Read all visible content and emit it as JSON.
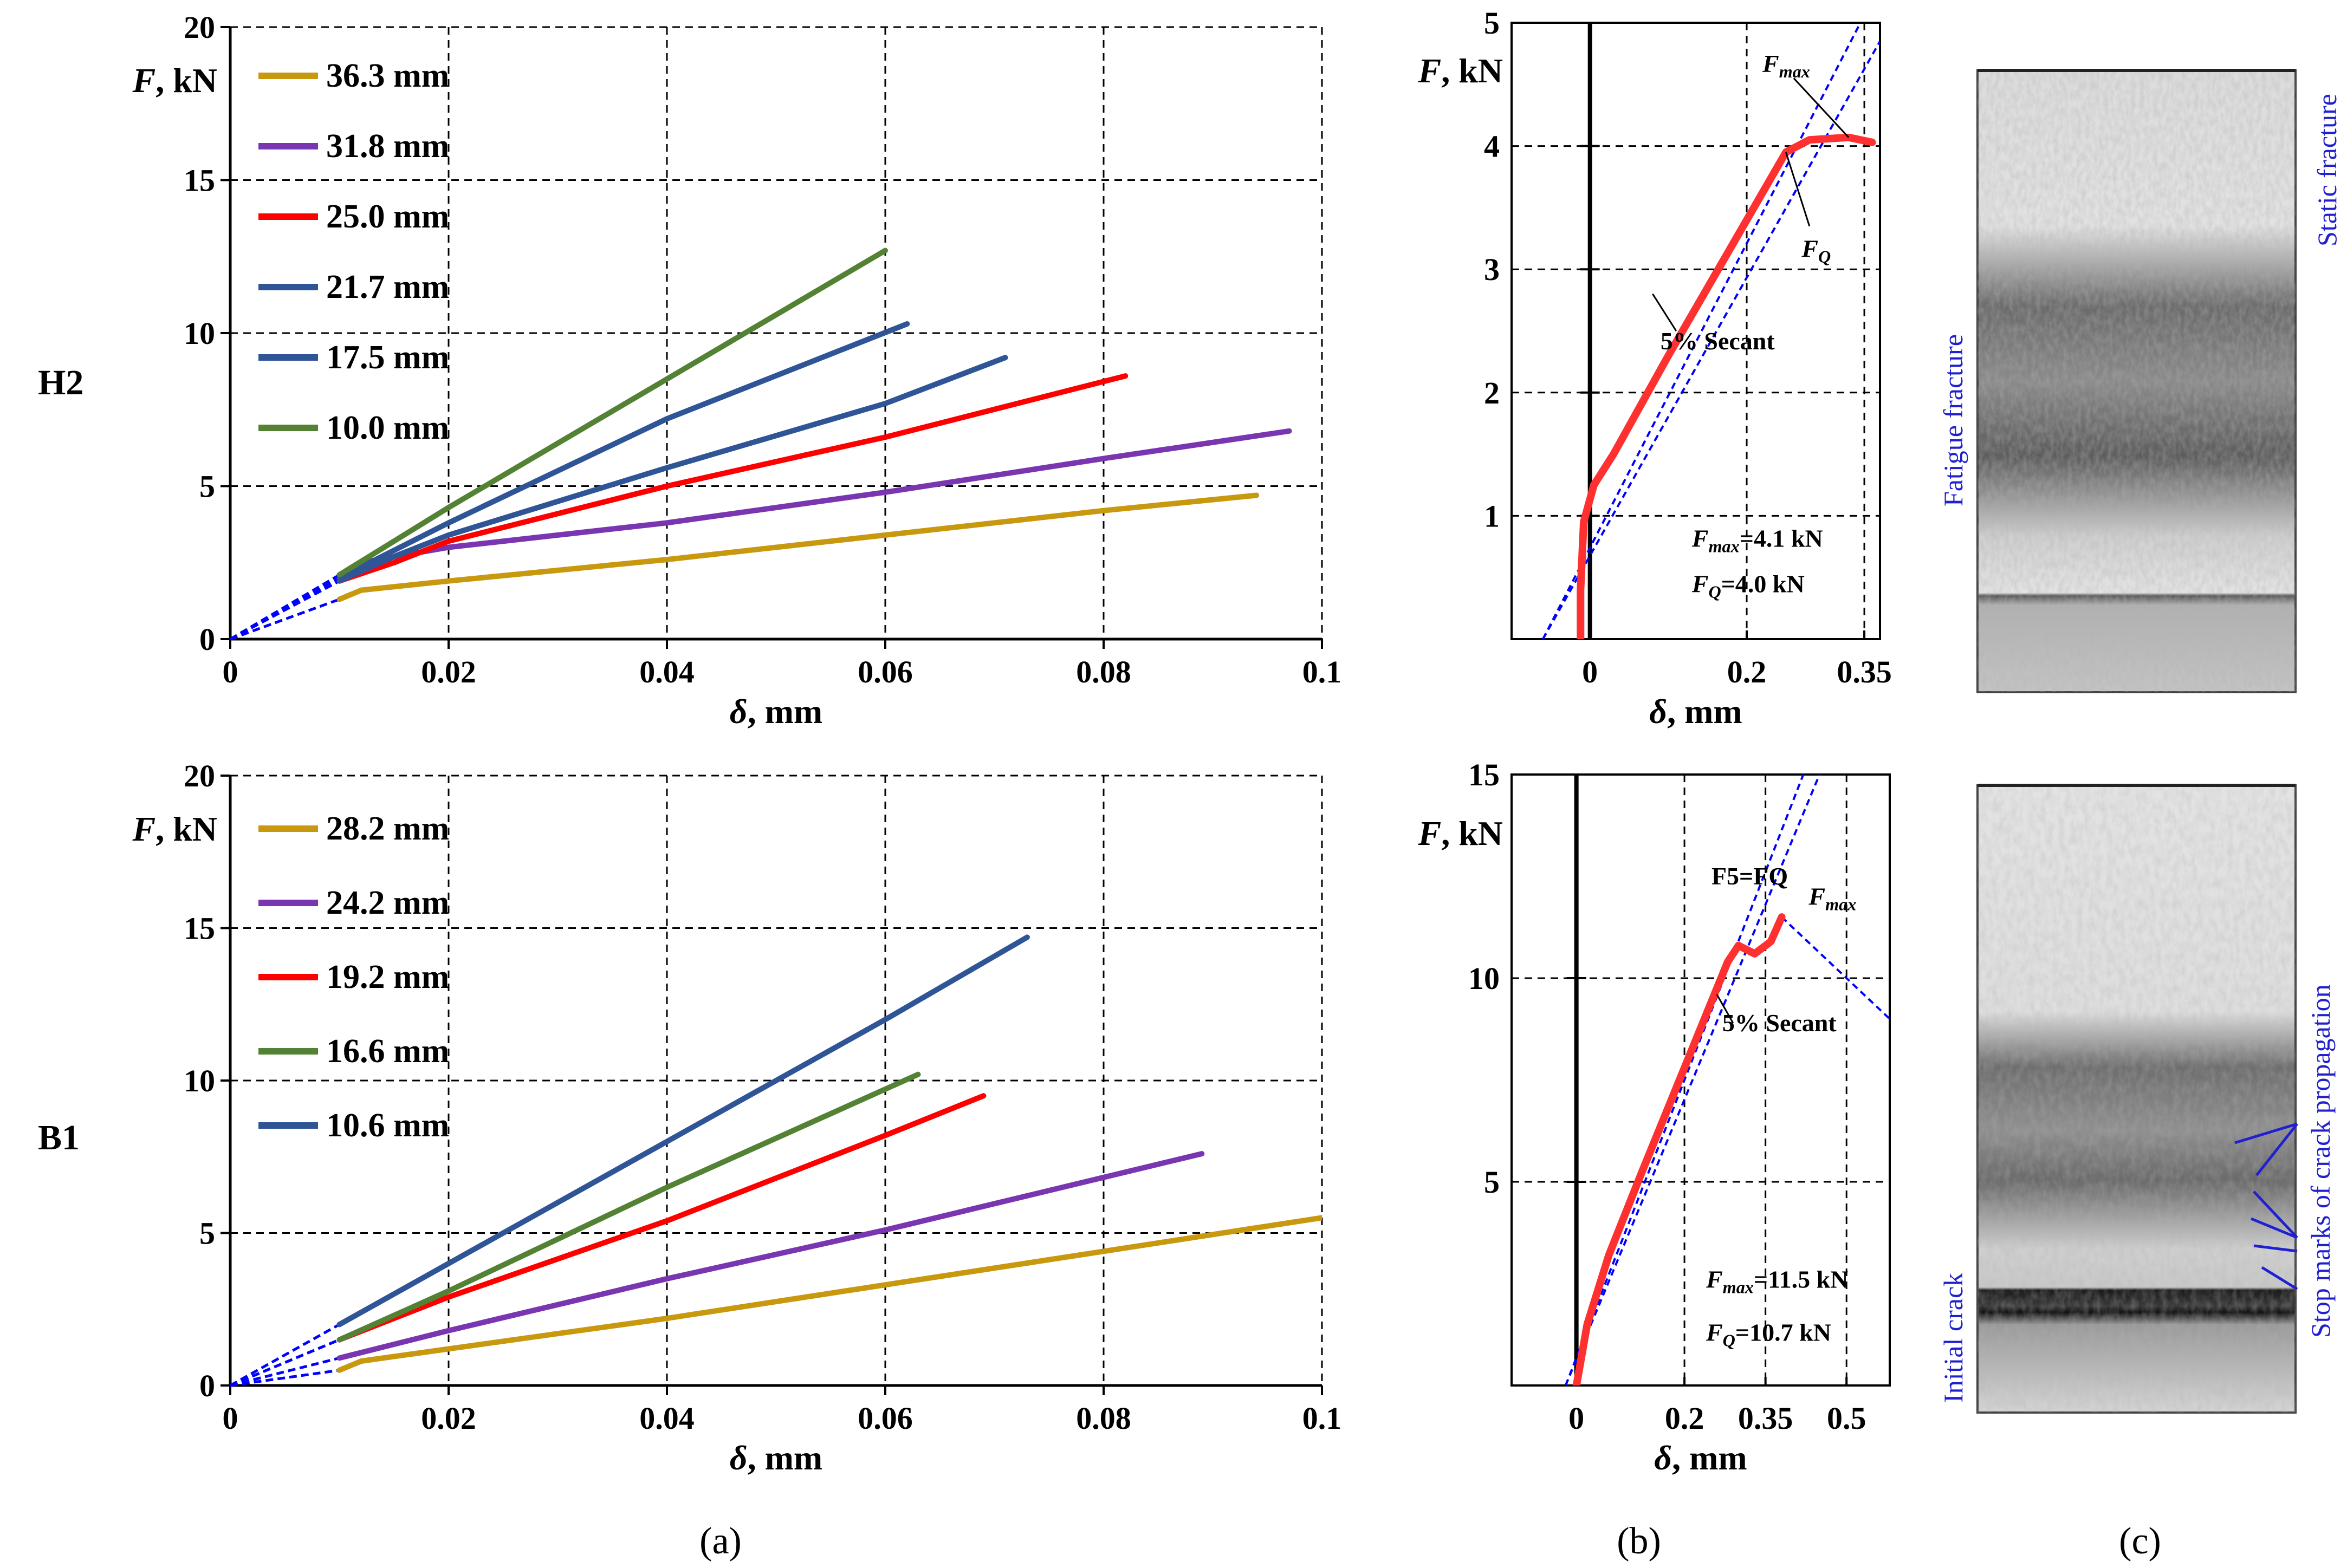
{
  "figure": {
    "row_labels": [
      "H2",
      "B1"
    ],
    "panel_labels": [
      "(a)",
      "(b)",
      "(c)"
    ]
  },
  "chart_data": [
    {
      "id": "a_top",
      "type": "line",
      "row": "H2",
      "xlabel": "δ, mm",
      "ylabel": "F, kN",
      "xlim": [
        0,
        0.1
      ],
      "ylim": [
        0,
        20
      ],
      "xticks": [
        "0",
        "0.02",
        "0.04",
        "0.06",
        "0.08",
        "0.1"
      ],
      "yticks": [
        "0",
        "5",
        "10",
        "15",
        "20"
      ],
      "grid": "dashed",
      "legend_position": "top-left",
      "series": [
        {
          "name": "36.3 mm",
          "color": "#c8980f",
          "points": [
            [
              0.01,
              1.3
            ],
            [
              0.012,
              1.6
            ],
            [
              0.02,
              1.9
            ],
            [
              0.04,
              2.6
            ],
            [
              0.06,
              3.4
            ],
            [
              0.08,
              4.2
            ],
            [
              0.094,
              4.7
            ]
          ]
        },
        {
          "name": "31.8 mm",
          "color": "#7a36b1",
          "points": [
            [
              0.01,
              1.95
            ],
            [
              0.012,
              2.5
            ],
            [
              0.02,
              3.0
            ],
            [
              0.04,
              3.8
            ],
            [
              0.06,
              4.8
            ],
            [
              0.08,
              5.9
            ],
            [
              0.097,
              6.8
            ]
          ]
        },
        {
          "name": "25.0 mm",
          "color": "#ff0000",
          "points": [
            [
              0.01,
              1.9
            ],
            [
              0.015,
              2.5
            ],
            [
              0.02,
              3.2
            ],
            [
              0.04,
              5.0
            ],
            [
              0.06,
              6.6
            ],
            [
              0.082,
              8.6
            ]
          ]
        },
        {
          "name": "21.7 mm",
          "color": "#2f5597",
          "points": [
            [
              0.01,
              1.9
            ],
            [
              0.015,
              2.7
            ],
            [
              0.02,
              3.4
            ],
            [
              0.04,
              5.6
            ],
            [
              0.06,
              7.7
            ],
            [
              0.071,
              9.2
            ]
          ]
        },
        {
          "name": "17.5 mm",
          "color": "#2f5597",
          "points": [
            [
              0.01,
              2.0
            ],
            [
              0.02,
              3.8
            ],
            [
              0.04,
              7.2
            ],
            [
              0.062,
              10.3
            ]
          ]
        },
        {
          "name": "10.0 mm",
          "color": "#548235",
          "points": [
            [
              0.01,
              2.1
            ],
            [
              0.02,
              4.3
            ],
            [
              0.04,
              8.5
            ],
            [
              0.06,
              12.7
            ]
          ]
        }
      ],
      "extrapolation": {
        "color": "#0000ff",
        "style": "dashed",
        "from": [
          0,
          0
        ],
        "to_x": 0.01
      }
    },
    {
      "id": "a_bottom",
      "type": "line",
      "row": "B1",
      "xlabel": "δ, mm",
      "ylabel": "F, kN",
      "xlim": [
        0,
        0.1
      ],
      "ylim": [
        0,
        20
      ],
      "xticks": [
        "0",
        "0.02",
        "0.04",
        "0.06",
        "0.08",
        "0.1"
      ],
      "yticks": [
        "0",
        "5",
        "10",
        "15",
        "20"
      ],
      "grid": "dashed",
      "legend_position": "top-left",
      "series": [
        {
          "name": "28.2 mm",
          "color": "#c8980f",
          "points": [
            [
              0.01,
              0.5
            ],
            [
              0.012,
              0.8
            ],
            [
              0.02,
              1.2
            ],
            [
              0.04,
              2.2
            ],
            [
              0.06,
              3.3
            ],
            [
              0.08,
              4.4
            ],
            [
              0.1,
              5.5
            ]
          ]
        },
        {
          "name": "24.2 mm",
          "color": "#7a36b1",
          "points": [
            [
              0.01,
              0.9
            ],
            [
              0.02,
              1.8
            ],
            [
              0.04,
              3.5
            ],
            [
              0.06,
              5.1
            ],
            [
              0.089,
              7.6
            ]
          ]
        },
        {
          "name": "19.2 mm",
          "color": "#ff0000",
          "points": [
            [
              0.01,
              1.5
            ],
            [
              0.02,
              2.9
            ],
            [
              0.04,
              5.4
            ],
            [
              0.06,
              8.2
            ],
            [
              0.069,
              9.5
            ]
          ]
        },
        {
          "name": "16.6 mm",
          "color": "#548235",
          "points": [
            [
              0.01,
              1.5
            ],
            [
              0.02,
              3.1
            ],
            [
              0.04,
              6.5
            ],
            [
              0.063,
              10.2
            ]
          ]
        },
        {
          "name": "10.6 mm",
          "color": "#2f5597",
          "points": [
            [
              0.01,
              2.0
            ],
            [
              0.02,
              4.0
            ],
            [
              0.04,
              8.0
            ],
            [
              0.06,
              12.0
            ],
            [
              0.073,
              14.7
            ]
          ]
        }
      ],
      "extrapolation": {
        "color": "#0000ff",
        "style": "dashed",
        "from": [
          0,
          0
        ],
        "to_x": 0.01
      }
    },
    {
      "id": "b_top",
      "type": "line",
      "row": "H2",
      "xlabel": "δ, mm",
      "ylabel": "F, kN",
      "xlim": [
        -0.1,
        0.37
      ],
      "ylim": [
        0,
        5
      ],
      "xticks": [
        "0",
        "0.2",
        "0.35"
      ],
      "yticks": [
        "1",
        "2",
        "3",
        "4",
        "5"
      ],
      "grid": "dashed",
      "series": [
        {
          "name": "",
          "color": "#ff3030",
          "points": [
            [
              -0.012,
              0.0
            ],
            [
              -0.012,
              0.4
            ],
            [
              -0.008,
              0.95
            ],
            [
              0.005,
              1.25
            ],
            [
              0.03,
              1.5
            ],
            [
              0.1,
              2.3
            ],
            [
              0.2,
              3.4
            ],
            [
              0.25,
              3.95
            ],
            [
              0.28,
              4.05
            ],
            [
              0.33,
              4.07
            ],
            [
              0.36,
              4.03
            ]
          ]
        }
      ],
      "secant_lines": [
        {
          "color": "#0000ff",
          "from": [
            -0.06,
            0
          ],
          "to": [
            0.345,
            5
          ]
        },
        {
          "color": "#0000ff",
          "from": [
            -0.06,
            0
          ],
          "to": [
            0.37,
            4.85
          ]
        }
      ],
      "annotations": [
        {
          "text": "Fmax",
          "sub": "max",
          "base": "F",
          "at": [
            0.22,
            4.6
          ]
        },
        {
          "text": "FQ",
          "sub": "Q",
          "base": "F",
          "at": [
            0.27,
            3.1
          ]
        },
        {
          "text": "5% Secant",
          "at": [
            0.09,
            2.35
          ]
        },
        {
          "text": "Fmax=4.1 kN",
          "base": "F",
          "sub": "max",
          "value": "=4.1 kN",
          "at": [
            0.13,
            0.75
          ]
        },
        {
          "text": "FQ=4.0 kN",
          "base": "F",
          "sub": "Q",
          "value": "=4.0 kN",
          "at": [
            0.13,
            0.38
          ]
        }
      ]
    },
    {
      "id": "b_bottom",
      "type": "line",
      "row": "B1",
      "xlabel": "δ, mm",
      "ylabel": "F, kN",
      "xlim": [
        -0.12,
        0.58
      ],
      "ylim": [
        0,
        15
      ],
      "xticks": [
        "0",
        "0.2",
        "0.35",
        "0.5"
      ],
      "yticks": [
        "5",
        "10",
        "15"
      ],
      "grid": "dashed",
      "series": [
        {
          "name": "",
          "color": "#ff3030",
          "points": [
            [
              0.0,
              0.0
            ],
            [
              0.02,
              1.5
            ],
            [
              0.06,
              3.2
            ],
            [
              0.12,
              5.2
            ],
            [
              0.2,
              7.8
            ],
            [
              0.28,
              10.4
            ],
            [
              0.3,
              10.8
            ],
            [
              0.33,
              10.6
            ],
            [
              0.36,
              10.9
            ],
            [
              0.38,
              11.5
            ]
          ]
        }
      ],
      "secant_lines": [
        {
          "color": "#0000ff",
          "from": [
            -0.02,
            0
          ],
          "to": [
            0.42,
            15
          ]
        },
        {
          "color": "#0000ff",
          "from": [
            -0.02,
            0
          ],
          "to": [
            0.45,
            15
          ]
        },
        {
          "color": "#0000ff",
          "from": [
            0.38,
            11.5
          ],
          "to": [
            0.58,
            9.0
          ]
        }
      ],
      "annotations": [
        {
          "text": "F5=FQ",
          "at": [
            0.25,
            12.3
          ]
        },
        {
          "text": "Fmax",
          "base": "F",
          "sub": "max",
          "at": [
            0.43,
            11.8
          ]
        },
        {
          "text": "5% Secant",
          "at": [
            0.27,
            8.7
          ]
        },
        {
          "text": "Fmax=11.5 kN",
          "base": "F",
          "sub": "max",
          "value": "=11.5 kN",
          "at": [
            0.24,
            2.4
          ]
        },
        {
          "text": "FQ=10.7 kN",
          "base": "F",
          "sub": "Q",
          "value": "=10.7 kN",
          "at": [
            0.24,
            1.1
          ]
        }
      ]
    }
  ],
  "photos": {
    "top": {
      "labels": [
        "Fatigue fracture",
        "Static fracture"
      ]
    },
    "bottom": {
      "labels": [
        "Initial crack",
        "Stop marks of crack propagation"
      ]
    }
  }
}
